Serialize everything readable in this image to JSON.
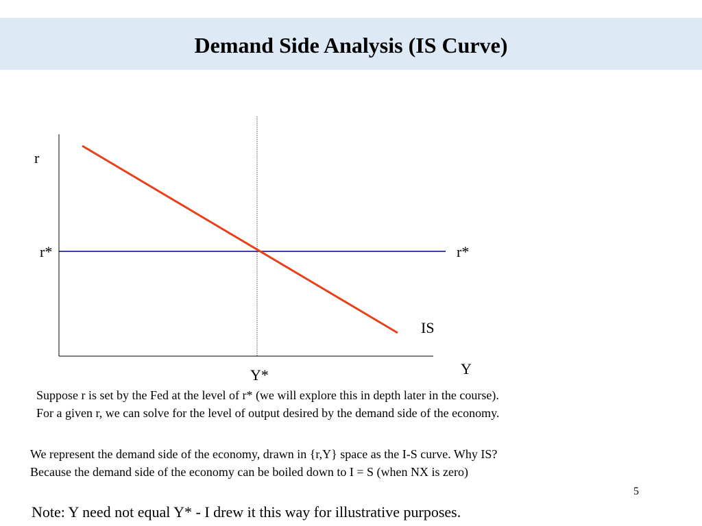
{
  "slide": {
    "title": "Demand Side Analysis (IS Curve)",
    "page_number": "5"
  },
  "diagram": {
    "y_axis_label": "r",
    "x_axis_label": "Y",
    "r_star_left_label": "r*",
    "r_star_right_label": "r*",
    "y_star_label": "Y*",
    "is_curve_label": "IS",
    "colors": {
      "is_curve": "#e8411a",
      "r_star_line": "#3d3db0",
      "axes": "#000000",
      "y_star_line": "#555555"
    }
  },
  "text": {
    "para1_line1": "Suppose r is set by the Fed at the level of r* (we will explore this in depth later in the course).",
    "para1_line2": "For a given r, we can solve for the level of output desired by the demand side of the economy.",
    "para2_line1": "We represent the demand side of the economy, drawn in {r,Y} space as the I-S curve.  Why IS?",
    "para2_line2": "Because the demand side of the economy can be boiled down to I = S (when NX is zero)",
    "note": "Note:  Y need not equal Y* - I drew it this way for illustrative purposes."
  }
}
